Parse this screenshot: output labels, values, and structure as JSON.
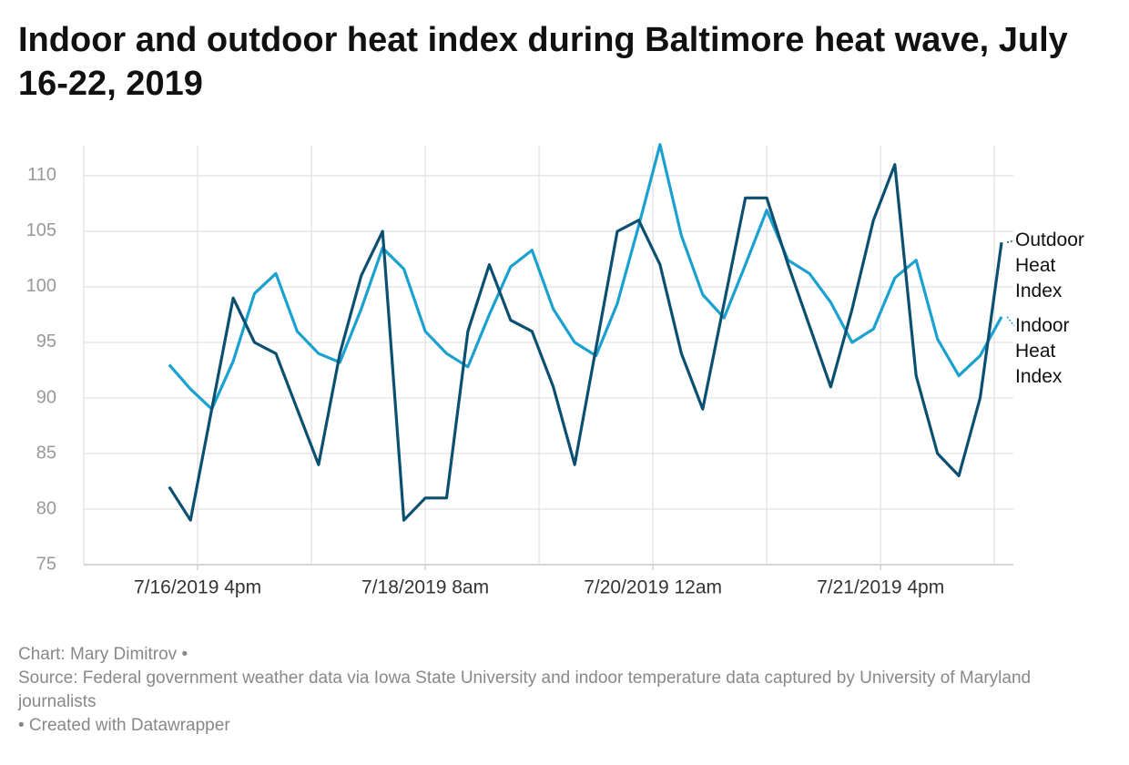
{
  "chart_data": {
    "type": "line",
    "title": "Indoor and outdoor heat index during Baltimore heat wave, July 16-22, 2019",
    "x": [
      "2019-07-16T11:00",
      "2019-07-16T14:45",
      "2019-07-16T18:30",
      "2019-07-16T22:15",
      "2019-07-17T02:00",
      "2019-07-17T05:45",
      "2019-07-17T09:30",
      "2019-07-17T13:15",
      "2019-07-17T17:00",
      "2019-07-17T20:45",
      "2019-07-18T00:30",
      "2019-07-18T04:15",
      "2019-07-18T08:00",
      "2019-07-18T11:45",
      "2019-07-18T15:30",
      "2019-07-18T19:15",
      "2019-07-18T23:00",
      "2019-07-19T02:45",
      "2019-07-19T06:30",
      "2019-07-19T10:15",
      "2019-07-19T14:00",
      "2019-07-19T17:45",
      "2019-07-19T21:30",
      "2019-07-20T01:15",
      "2019-07-20T05:00",
      "2019-07-20T08:45",
      "2019-07-20T12:30",
      "2019-07-20T16:15",
      "2019-07-20T20:00",
      "2019-07-20T23:45",
      "2019-07-21T03:30",
      "2019-07-21T07:15",
      "2019-07-21T11:00",
      "2019-07-21T14:45",
      "2019-07-21T18:30",
      "2019-07-21T22:15",
      "2019-07-22T02:00",
      "2019-07-22T05:45",
      "2019-07-22T09:30",
      "2019-07-22T13:15"
    ],
    "series": [
      {
        "name": "Outdoor Heat Index",
        "color": "#0b4f71",
        "values": [
          82,
          79,
          89,
          99,
          95,
          94,
          89,
          84,
          94,
          101,
          105,
          79,
          81,
          81,
          96,
          102,
          97,
          96,
          91,
          84,
          94.5,
          105,
          106,
          102,
          94,
          89,
          98.5,
          108,
          108,
          102,
          96.5,
          91,
          98,
          106,
          111,
          92,
          85,
          83,
          90,
          104
        ]
      },
      {
        "name": "Indoor Heat Index",
        "color": "#1ba1d0",
        "values": [
          93,
          90.8,
          89,
          93.3,
          99.4,
          101.2,
          96,
          94,
          93.2,
          98,
          103.5,
          101.6,
          96,
          94,
          92.8,
          97.5,
          101.8,
          103.3,
          98,
          95,
          93.8,
          98.5,
          105.5,
          112.8,
          104.6,
          99.3,
          97.2,
          102,
          106.9,
          102.4,
          101.2,
          98.6,
          95,
          96.2,
          100.8,
          102.4,
          95.3,
          92,
          93.8,
          97.3
        ]
      }
    ],
    "xlim": [
      "2019-07-15T20:00",
      "2019-07-22T15:20"
    ],
    "xticks": [
      {
        "value": "2019-07-16T16:00",
        "label": "7/16/2019 4pm"
      },
      {
        "value": "2019-07-18T08:00",
        "label": "7/18/2019 8am"
      },
      {
        "value": "2019-07-20T00:00",
        "label": "7/20/2019 12am"
      },
      {
        "value": "2019-07-21T16:00",
        "label": "7/21/2019 4pm"
      }
    ],
    "ylim": [
      75,
      112.7
    ],
    "yticks": [
      75,
      80,
      85,
      90,
      95,
      100,
      105,
      110
    ],
    "grid": true,
    "footer": {
      "credit": "Chart: Mary Dimitrov •",
      "source": "Source: Federal government weather data via Iowa State University and indoor temperature data captured by University of Maryland journalists",
      "tool": " • Created with Datawrapper"
    }
  }
}
